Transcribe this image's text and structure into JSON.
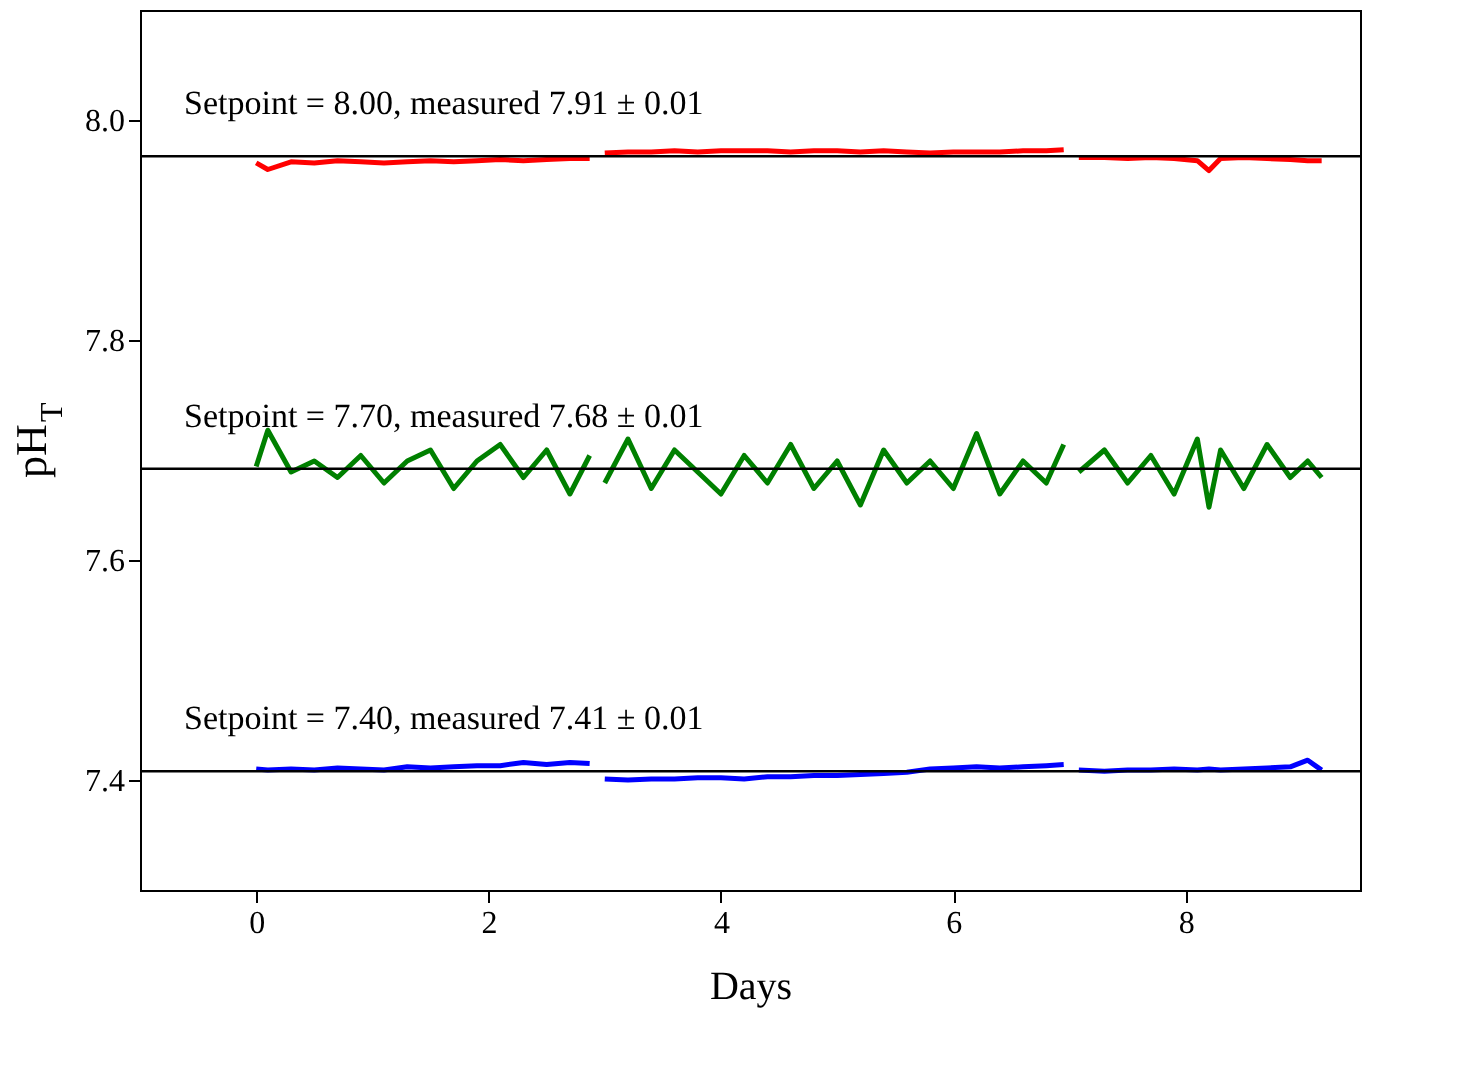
{
  "chart_data": {
    "type": "line",
    "xlabel": "Days",
    "ylabel": "pH$_{T}$",
    "x": [
      0,
      0.1,
      0.3,
      0.5,
      0.7,
      0.9,
      1.1,
      1.3,
      1.5,
      1.7,
      1.9,
      2.1,
      2.3,
      2.5,
      2.7,
      2.87,
      2.93,
      3.0,
      3.2,
      3.4,
      3.6,
      3.8,
      4.0,
      4.2,
      4.4,
      4.6,
      4.8,
      5.0,
      5.2,
      5.4,
      5.6,
      5.8,
      6.0,
      6.2,
      6.4,
      6.6,
      6.8,
      6.95,
      7.02,
      7.08,
      7.3,
      7.5,
      7.7,
      7.9,
      8.1,
      8.2,
      8.3,
      8.5,
      8.7,
      8.9,
      9.05,
      9.17
    ],
    "series": [
      {
        "color": "#ff0000",
        "values": [
          7.961,
          7.955,
          7.962,
          7.961,
          7.963,
          7.962,
          7.961,
          7.962,
          7.963,
          7.962,
          7.963,
          7.964,
          7.963,
          7.964,
          7.965,
          7.965,
          null,
          7.97,
          7.971,
          7.971,
          7.972,
          7.971,
          7.972,
          7.972,
          7.972,
          7.971,
          7.972,
          7.972,
          7.971,
          7.972,
          7.971,
          7.97,
          7.971,
          7.971,
          7.971,
          7.972,
          7.972,
          7.973,
          null,
          7.966,
          7.966,
          7.965,
          7.966,
          7.965,
          7.963,
          7.954,
          7.965,
          7.966,
          7.965,
          7.964,
          7.963,
          7.963
        ]
      },
      {
        "color": "#008000",
        "values": [
          7.685,
          7.718,
          7.68,
          7.69,
          7.675,
          7.695,
          7.67,
          7.69,
          7.7,
          7.665,
          7.69,
          7.705,
          7.675,
          7.7,
          7.66,
          7.695,
          null,
          7.67,
          7.71,
          7.665,
          7.7,
          7.68,
          7.66,
          7.695,
          7.67,
          7.705,
          7.665,
          7.69,
          7.65,
          7.7,
          7.67,
          7.69,
          7.665,
          7.715,
          7.66,
          7.69,
          7.67,
          7.705,
          null,
          7.68,
          7.7,
          7.67,
          7.695,
          7.66,
          7.71,
          7.648,
          7.7,
          7.665,
          7.705,
          7.675,
          7.69,
          7.675
        ]
      },
      {
        "color": "#0000ff",
        "values": [
          7.41,
          7.409,
          7.41,
          7.409,
          7.411,
          7.41,
          7.409,
          7.412,
          7.411,
          7.412,
          7.413,
          7.413,
          7.416,
          7.414,
          7.416,
          7.415,
          null,
          7.401,
          7.4,
          7.401,
          7.401,
          7.402,
          7.402,
          7.401,
          7.403,
          7.403,
          7.404,
          7.404,
          7.405,
          7.406,
          7.407,
          7.41,
          7.411,
          7.412,
          7.411,
          7.412,
          7.413,
          7.414,
          null,
          7.409,
          7.408,
          7.409,
          7.409,
          7.41,
          7.409,
          7.41,
          7.409,
          7.41,
          7.411,
          7.412,
          7.418,
          7.409
        ]
      }
    ],
    "ref_lines": [
      {
        "axis": "y",
        "value": 7.967,
        "color": "#000000"
      },
      {
        "axis": "y",
        "value": 7.683,
        "color": "#000000"
      },
      {
        "axis": "y",
        "value": 7.408,
        "color": "#000000"
      }
    ],
    "annotations": [
      "Setpoint = 8.00, measured 7.91 ± 0.01",
      "Setpoint = 7.70, measured 7.68 ± 0.01",
      "Setpoint = 7.40, measured 7.41 ± 0.01"
    ],
    "xlim": [
      -1,
      9.5
    ],
    "xticks": [
      0,
      2,
      4,
      6,
      8
    ],
    "ylim": [
      7.3,
      8.1
    ],
    "yticks": [
      7.4,
      7.6,
      7.8,
      {
        "value": 8.0,
        "label": "8.0"
      }
    ],
    "grid": false,
    "marker": "none",
    "line_style": "solid"
  }
}
